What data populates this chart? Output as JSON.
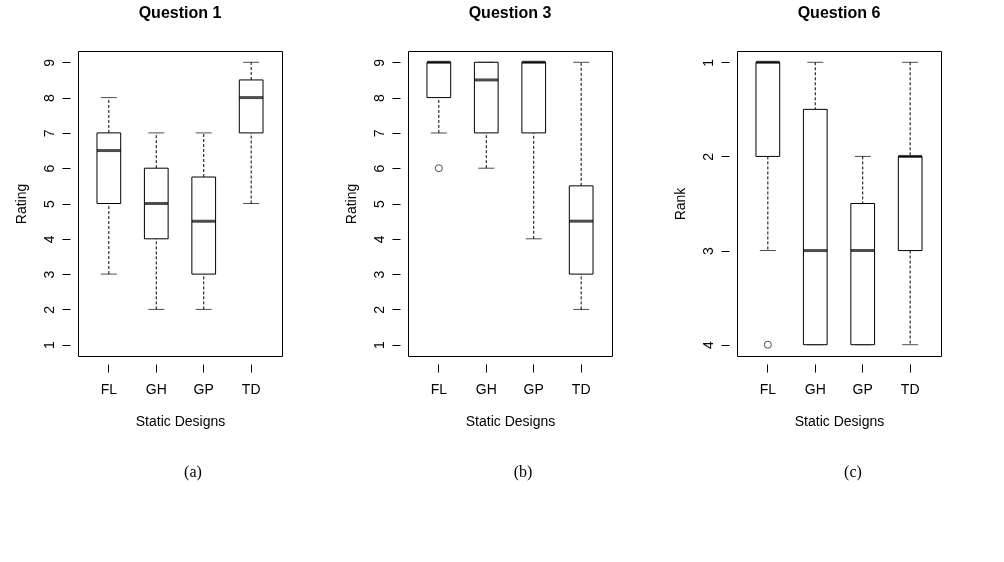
{
  "chart_data": [
    {
      "type": "box",
      "title": "Question 1",
      "xlabel": "Static Designs",
      "ylabel": "Rating",
      "categories": [
        "FL",
        "GH",
        "GP",
        "TD"
      ],
      "ylim": [
        0.68,
        9.32
      ],
      "yticks": [
        1,
        2,
        3,
        4,
        5,
        6,
        7,
        8,
        9
      ],
      "annotations": [
        "(a)"
      ],
      "boxes": [
        {
          "low": 3,
          "q1": 5,
          "median": 6.5,
          "q3": 7,
          "high": 8
        },
        {
          "low": 2,
          "q1": 4,
          "median": 5,
          "q3": 6,
          "high": 7
        },
        {
          "low": 2,
          "q1": 3,
          "median": 4.5,
          "q3": 5.75,
          "high": 7
        },
        {
          "low": 5,
          "q1": 7,
          "median": 8,
          "q3": 8.5,
          "high": 9
        }
      ]
    },
    {
      "type": "box",
      "title": "Question 3",
      "xlabel": "Static Designs",
      "ylabel": "Rating",
      "categories": [
        "FL",
        "GH",
        "GP",
        "TD"
      ],
      "ylim": [
        0.68,
        9.32
      ],
      "yticks": [
        1,
        2,
        3,
        4,
        5,
        6,
        7,
        8,
        9
      ],
      "annotations": [
        "(b)"
      ],
      "boxes": [
        {
          "low": 7,
          "q1": 8,
          "median": 9,
          "q3": 9,
          "high": 9,
          "outliers": [
            6
          ]
        },
        {
          "low": 6,
          "q1": 7,
          "median": 8.5,
          "q3": 9,
          "high": 9
        },
        {
          "low": 4,
          "q1": 7,
          "median": 9,
          "q3": 9,
          "high": 9
        },
        {
          "low": 2,
          "q1": 3,
          "median": 4.5,
          "q3": 5.5,
          "high": 9
        }
      ]
    },
    {
      "type": "box",
      "title": "Question 6",
      "xlabel": "Static Designs",
      "ylabel": "Rank",
      "categories": [
        "FL",
        "GH",
        "GP",
        "TD"
      ],
      "ylim": [
        4.12,
        0.88
      ],
      "yticks": [
        1,
        2,
        3,
        4
      ],
      "annotations": [
        "(c)"
      ],
      "boxes": [
        {
          "low": 1,
          "q1": 1,
          "median": 1,
          "q3": 2,
          "high": 3,
          "outliers": [
            4
          ]
        },
        {
          "low": 1,
          "q1": 1.5,
          "median": 3,
          "q3": 4,
          "high": 4
        },
        {
          "low": 2,
          "q1": 2.5,
          "median": 3,
          "q3": 4,
          "high": 4
        },
        {
          "low": 1,
          "q1": 2,
          "median": 2,
          "q3": 3,
          "high": 4
        }
      ]
    }
  ]
}
